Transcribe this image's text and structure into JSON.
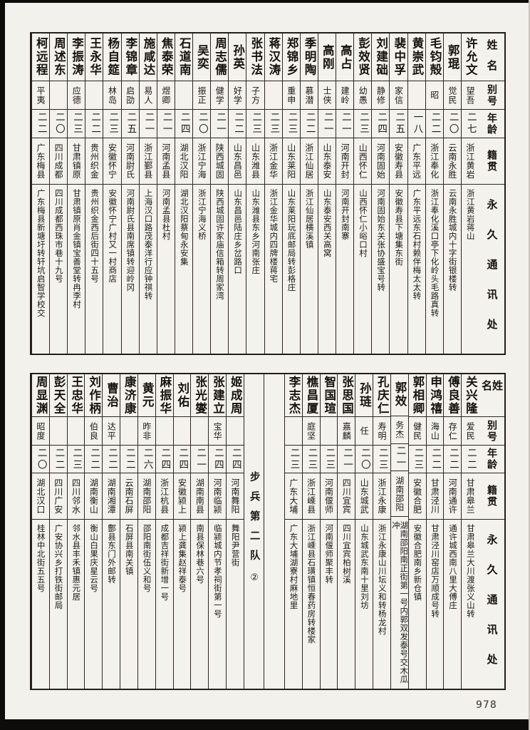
{
  "page": {
    "number": "978"
  },
  "headers": {
    "name": "姓名",
    "alias": "别号",
    "age": "年龄",
    "native": "籍贯",
    "address": "永久通讯处"
  },
  "divider": {
    "label": "步兵第二队",
    "mark": "②"
  },
  "top_table": {
    "people": [
      {
        "name": "许允文",
        "alias": "望吾",
        "age": "二七",
        "native": "浙江黄岩",
        "address": "浙江黄岩蒋山"
      },
      {
        "name": "郭琨",
        "alias": "觉民",
        "age": "二〇",
        "native": "云南永胜",
        "address": "云南永胜城内十字街银楼转"
      },
      {
        "name": "毛钧殻",
        "alias": "昭",
        "age": "二二",
        "native": "浙江奉化",
        "address": "浙江奉化溪口亭下化岭头毛路真转"
      },
      {
        "name": "黄崇武",
        "alias": "",
        "age": "一八",
        "native": "广东平远",
        "address": "广东平远东石村赖伴梅太太转"
      },
      {
        "name": "裴中孚",
        "alias": "家信",
        "age": "二五",
        "native": "安徽寿县",
        "address": "安徽寿县下塘集东街"
      },
      {
        "name": "刘建础",
        "alias": "静修",
        "age": "二四",
        "native": "河南固始",
        "address": "河南固始东关张协盛宝号转"
      },
      {
        "name": "彭效贤",
        "alias": "幼愚",
        "age": "二三",
        "native": "山西怀仁",
        "address": "山西怀仁小峪口村"
      },
      {
        "name": "高占",
        "alias": "建岭",
        "age": "二一",
        "native": "河南开封",
        "address": "河南开封南寨"
      },
      {
        "name": "高刚",
        "alias": "士侠",
        "age": "二一",
        "native": "山东泰安",
        "address": "山东泰安西关高窝"
      },
      {
        "name": "季明陶",
        "alias": "慕潜",
        "age": "二二",
        "native": "浙江仙居",
        "address": "浙江仙居横溪镇"
      },
      {
        "name": "郑锦乡",
        "alias": "重申",
        "age": "二三",
        "native": "山东莱阳",
        "address": "山东莱阳玩底邮局转彭格庄"
      },
      {
        "name": "蒋汉涛",
        "alias": "",
        "age": "二三",
        "native": "浙江金华",
        "address": "浙江金华城内四牌楼蒋宅"
      },
      {
        "name": "张书法",
        "alias": "子方",
        "age": "二三",
        "native": "山东潍县",
        "address": "山东潍县东乡河南张庄"
      },
      {
        "name": "孙英",
        "alias": "好学",
        "age": "二二",
        "native": "山东昌邑",
        "address": "山东昌邑陆庄乡岔路口"
      },
      {
        "name": "周志儒",
        "alias": "健学",
        "age": "二一",
        "native": "陕西城固",
        "address": "陕西城固许家庙信箱转周家湾"
      },
      {
        "name": "吴奕",
        "alias": "振正",
        "age": "二〇",
        "native": "浙江宁海",
        "address": "浙江宁海义桥"
      },
      {
        "name": "石道南",
        "alias": "",
        "age": "二四",
        "native": "湖北汉阳",
        "address": "湖北汉阳蔡甸永安集"
      },
      {
        "name": "焦泰荣",
        "alias": "煜卿",
        "age": "二一",
        "native": "河南孟县",
        "address": "河南孟县杜村"
      },
      {
        "name": "施咸达",
        "alias": "易人",
        "age": "二一",
        "native": "浙江鄞县",
        "address": "上海汉口路茂泰洋行应钟祺转"
      },
      {
        "name": "李锦章",
        "alias": "启劭",
        "age": "二五",
        "native": "河南尉氏",
        "address": "河南尉氏县南席镇转迎岭冈"
      },
      {
        "name": "杨自筵",
        "alias": "林岛",
        "age": "二三",
        "native": "安徽怀宁",
        "address": "安徽怀宁广村又一村商店"
      },
      {
        "name": "王永华",
        "alias": "",
        "age": "二二",
        "native": "贵州织金",
        "address": "贵州织金西后街四十五号"
      },
      {
        "name": "李振涛",
        "alias": "应德",
        "age": "二三",
        "native": "甘肃镇原",
        "address": "甘肃镇原肖金镇宝善堂转冉李村"
      },
      {
        "name": "周述东",
        "alias": "",
        "age": "二〇",
        "native": "四川成都",
        "address": "四川成都西珠市巷十九号"
      },
      {
        "name": "柯远程",
        "alias": "平夷",
        "age": "二二",
        "native": "广东梅县",
        "address": "广东梅县新塘圩转轩坑启智学校交"
      }
    ]
  },
  "bottom_table": {
    "right_people": [
      {
        "name": "关兴隆",
        "alias": "爱民",
        "age": "二二",
        "native": "甘肃皋兰",
        "address": "甘肃皋兰大川渡张义山转"
      },
      {
        "name": "傅良善",
        "alias": "存仁",
        "age": "二二",
        "native": "河南通许",
        "address": "通许城西南八里大傅庄"
      },
      {
        "name": "申鸿禧",
        "alias": "海山",
        "age": "二二",
        "native": "甘肃泾川",
        "address": "甘肃泾川窑店万顺成号转"
      },
      {
        "name": "郭相卿",
        "alias": "健民",
        "age": "二三",
        "native": "安徽合肥",
        "address": "安徽合肥南乡新仓镇"
      },
      {
        "name": "郭效",
        "alias": "务杰",
        "age": "二一",
        "native": "湖南邵阳",
        "address": "湖南邵阳南正街第一号内郭双发泰号交木瓜冲"
      },
      {
        "name": "孔庆仁",
        "alias": "寿明",
        "age": "二三",
        "native": "浙江永康",
        "address": "浙江永康山川坛义和转杨龙村"
      },
      {
        "name": "孙琏",
        "alias": "任",
        "age": "二〇",
        "native": "山东城武",
        "address": "山东城武东南十里刘坊"
      },
      {
        "name": "张思国",
        "alias": "嘉麟",
        "age": "二一",
        "native": "四川宜宾",
        "address": "四川宜宾柏树溪"
      },
      {
        "name": "智国瑄",
        "alias": "",
        "age": "二三",
        "native": "河南偃师",
        "address": "河南偃师聚丰转"
      },
      {
        "name": "樵昌厦",
        "alias": "庭坚",
        "age": "二三",
        "native": "浙江嵊县",
        "address": "浙江嵊县石璜镇恒春药房转楼家"
      },
      {
        "name": "李志杰",
        "alias": "",
        "age": "二三",
        "native": "广东大埔",
        "address": "广东大埔湖寮村麻地里"
      }
    ],
    "left_people": [
      {
        "name": "姬成周",
        "alias": "",
        "age": "二四",
        "native": "河南舞阳",
        "address": "舞阳尹营街"
      },
      {
        "name": "张建立",
        "alias": "宝华",
        "age": "二四",
        "native": "河南临颍",
        "address": "临颍城内节孝祠街第一号"
      },
      {
        "name": "张光燮",
        "alias": "",
        "age": "二一",
        "native": "湖南南县",
        "address": "南县保林巷六号"
      },
      {
        "name": "刘佑",
        "alias": "",
        "age": "二四",
        "native": "安徽颍上",
        "address": "颍上龚集赵祥泰号"
      },
      {
        "name": "麻振华",
        "alias": "",
        "age": "二四",
        "native": "浙江杭县",
        "address": "成都吉祥街新增一号"
      },
      {
        "name": "黄元",
        "alias": "昨非",
        "age": "二六",
        "native": "湖南邵阳",
        "address": "邵阳南街伍义和号"
      },
      {
        "name": "康济康",
        "alias": "",
        "age": "二二",
        "native": "云南石屏",
        "address": "石屏县南关镇"
      },
      {
        "name": "曹治",
        "alias": "达平",
        "age": "二二",
        "native": "湖南湘潭",
        "address": "鄷县东门外邮转"
      },
      {
        "name": "刘作柄",
        "alias": "伯良",
        "age": "二二",
        "native": "湖南衡山",
        "address": "衡山白果庆星云号"
      },
      {
        "name": "王忠华",
        "alias": "",
        "age": "二三",
        "native": "四川邻水",
        "address": "邻水县丰禾镇惠元居"
      },
      {
        "name": "彭天全",
        "alias": "",
        "age": "二二",
        "native": "四川广安",
        "address": "广安协兴乡打铁街邮局"
      },
      {
        "name": "周显渊",
        "alias": "昭度",
        "age": "二〇",
        "native": "湖北汉口",
        "address": "桂林中北街五五号"
      }
    ]
  }
}
